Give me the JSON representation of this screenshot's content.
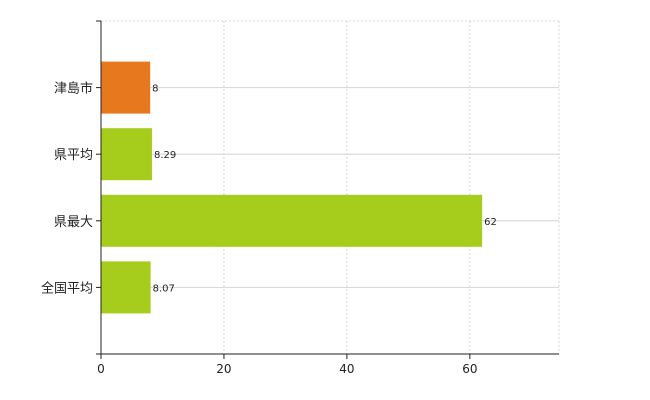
{
  "chart_data": {
    "type": "bar",
    "orientation": "horizontal",
    "categories": [
      "津島市",
      "県平均",
      "県最大",
      "全国平均"
    ],
    "values": [
      8,
      8.29,
      62,
      8.07
    ],
    "value_labels": [
      "8",
      "8.29",
      "62",
      "8.07"
    ],
    "bar_colors": [
      "#e8781e",
      "#a6cc1c",
      "#a6cc1c",
      "#a6cc1c"
    ],
    "xlim": [
      0,
      74.5
    ],
    "xticks": [
      0,
      20,
      40,
      60
    ],
    "xtick_labels": [
      "0",
      "20",
      "40",
      "60"
    ],
    "grid": true,
    "legend": "none"
  }
}
